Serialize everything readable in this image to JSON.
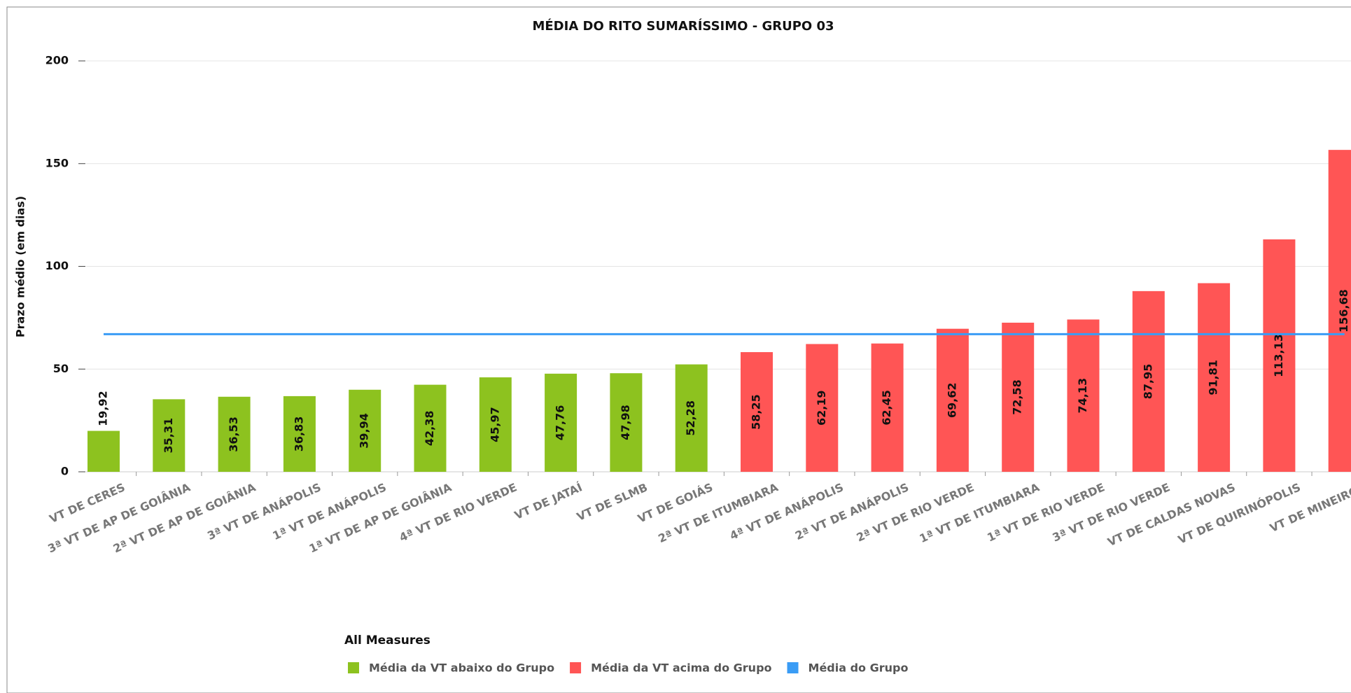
{
  "chart_data": {
    "type": "bar",
    "title": "MÉDIA DO RITO SUMARÍSSIMO - GRUPO 03",
    "y_label": "Prazo médio (em dias)",
    "legend_title": "All Measures",
    "categories": [
      "VT DE CERES",
      "3ª VT DE AP DE GOIÂNIA",
      "2ª VT DE AP DE GOIÂNIA",
      "3ª VT DE ANÁPOLIS",
      "1ª VT DE ANÁPOLIS",
      "1ª VT DE AP DE GOIÂNIA",
      "4ª VT DE RIO VERDE",
      "VT DE JATAÍ",
      "VT DE SLMB",
      "VT DE GOIÁS",
      "2ª VT DE ITUMBIARA",
      "4ª VT DE ANÁPOLIS",
      "2ª VT DE ANÁPOLIS",
      "2ª VT DE RIO VERDE",
      "1ª VT DE ITUMBIARA",
      "1ª VT DE RIO VERDE",
      "3ª VT DE RIO VERDE",
      "VT DE CALDAS NOVAS",
      "VT DE QUIRINÓPOLIS",
      "VT DE MINEIROS"
    ],
    "series": [
      {
        "name": "Média da VT abaixo do Grupo",
        "color": "#8dc21f",
        "type": "bar",
        "values": [
          19.92,
          35.31,
          36.53,
          36.83,
          39.94,
          42.38,
          45.97,
          47.76,
          47.98,
          52.28,
          null,
          null,
          null,
          null,
          null,
          null,
          null,
          null,
          null,
          null
        ],
        "value_labels": [
          "19,92",
          "35,31",
          "36,53",
          "36,83",
          "39,94",
          "42,38",
          "45,97",
          "47,76",
          "47,98",
          "52,28",
          null,
          null,
          null,
          null,
          null,
          null,
          null,
          null,
          null,
          null
        ]
      },
      {
        "name": "Média da VT acima do Grupo",
        "color": "#ff5555",
        "type": "bar",
        "values": [
          null,
          null,
          null,
          null,
          null,
          null,
          null,
          null,
          null,
          null,
          58.25,
          62.19,
          62.45,
          69.62,
          72.58,
          74.13,
          87.95,
          91.81,
          113.13,
          156.68
        ],
        "value_labels": [
          null,
          null,
          null,
          null,
          null,
          null,
          null,
          null,
          null,
          null,
          "58,25",
          "62,19",
          "62,45",
          "69,62",
          "72,58",
          "74,13",
          "87,95",
          "91,81",
          "113,13",
          "156,68"
        ]
      },
      {
        "name": "Média do Grupo",
        "color": "#3a9cf5",
        "type": "line",
        "values": [
          67,
          67,
          67,
          67,
          67,
          67,
          67,
          67,
          67,
          67,
          67,
          67,
          67,
          67,
          67,
          67,
          67,
          67,
          67,
          67
        ]
      }
    ],
    "ylim": [
      0,
      200
    ],
    "yticks": [
      0,
      50,
      100,
      150,
      200
    ],
    "grid": true
  }
}
